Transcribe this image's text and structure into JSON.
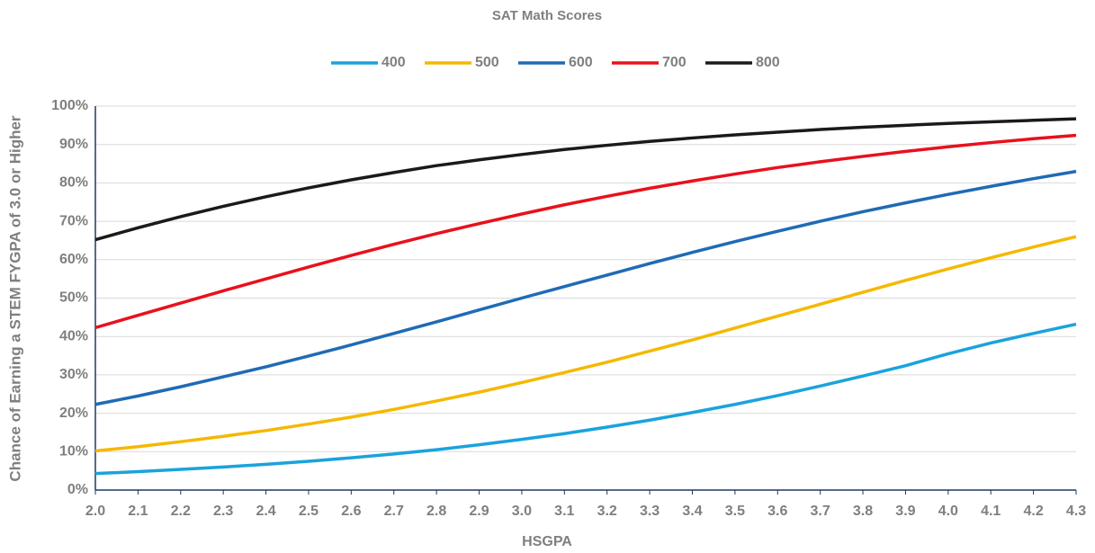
{
  "chart_data": {
    "type": "line",
    "title": "SAT Math Scores",
    "x_label": "HSGPA",
    "y_label": "Chance of Earning a STEM FYGPA of 3.0 or Higher",
    "x": [
      2.0,
      2.1,
      2.2,
      2.3,
      2.4,
      2.5,
      2.6,
      2.7,
      2.8,
      2.9,
      3.0,
      3.1,
      3.2,
      3.3,
      3.4,
      3.5,
      3.6,
      3.7,
      3.8,
      3.9,
      4.0,
      4.1,
      4.2,
      4.3
    ],
    "series": [
      {
        "name": "400",
        "color": "#1aa3dc",
        "values": [
          4.3,
          4.8,
          5.4,
          6.0,
          6.7,
          7.5,
          8.4,
          9.4,
          10.5,
          11.8,
          13.2,
          14.7,
          16.4,
          18.2,
          20.2,
          22.3,
          24.6,
          27.1,
          29.7,
          32.4,
          35.5,
          38.3,
          40.8,
          43.2
        ]
      },
      {
        "name": "500",
        "color": "#f5b800",
        "values": [
          10.2,
          11.3,
          12.6,
          14.0,
          15.5,
          17.2,
          19.0,
          21.0,
          23.2,
          25.5,
          28.0,
          30.6,
          33.3,
          36.2,
          39.1,
          42.2,
          45.3,
          48.4,
          51.5,
          54.6,
          57.6,
          60.5,
          63.3,
          66.0
        ]
      },
      {
        "name": "600",
        "color": "#1f6bb5",
        "values": [
          22.3,
          24.5,
          26.9,
          29.5,
          32.1,
          34.9,
          37.8,
          40.8,
          43.8,
          46.9,
          50.0,
          53.0,
          56.0,
          59.0,
          61.9,
          64.7,
          67.4,
          70.0,
          72.5,
          74.8,
          77.0,
          79.1,
          81.1,
          83.0
        ]
      },
      {
        "name": "700",
        "color": "#e8111c",
        "values": [
          42.3,
          45.5,
          48.7,
          51.9,
          55.0,
          58.1,
          61.1,
          64.0,
          66.8,
          69.4,
          71.9,
          74.3,
          76.5,
          78.6,
          80.5,
          82.3,
          84.0,
          85.5,
          86.9,
          88.2,
          89.4,
          90.5,
          91.5,
          92.4
        ]
      },
      {
        "name": "800",
        "color": "#1a1a1a",
        "values": [
          65.2,
          68.3,
          71.2,
          73.9,
          76.4,
          78.7,
          80.8,
          82.7,
          84.5,
          86.0,
          87.4,
          88.7,
          89.8,
          90.8,
          91.7,
          92.5,
          93.2,
          93.9,
          94.5,
          95.0,
          95.5,
          95.9,
          96.3,
          96.7
        ]
      }
    ],
    "xlim": [
      2.0,
      4.3
    ],
    "xticks": [
      {
        "value": 2,
        "label": "2.0"
      },
      2.1,
      2.2,
      2.3,
      2.4,
      2.5,
      2.6,
      2.7,
      2.8,
      2.9,
      {
        "value": 3,
        "label": "3.0"
      },
      3.1,
      3.2,
      3.3,
      3.4,
      3.5,
      3.6,
      3.7,
      3.8,
      3.9,
      {
        "value": 4,
        "label": "4.0"
      },
      4.1,
      4.2,
      4.3
    ],
    "ylim": [
      0,
      100
    ],
    "yticks": [
      {
        "value": 0,
        "label": "0%"
      },
      {
        "value": 10,
        "label": "10%"
      },
      {
        "value": 20,
        "label": "20%"
      },
      {
        "value": 30,
        "label": "30%"
      },
      {
        "value": 40,
        "label": "40%"
      },
      {
        "value": 50,
        "label": "50%"
      },
      {
        "value": 60,
        "label": "60%"
      },
      {
        "value": 70,
        "label": "70%"
      },
      {
        "value": 80,
        "label": "80%"
      },
      {
        "value": 90,
        "label": "90%"
      },
      {
        "value": 100,
        "label": "100%"
      }
    ],
    "grid": true,
    "legend": "top"
  }
}
